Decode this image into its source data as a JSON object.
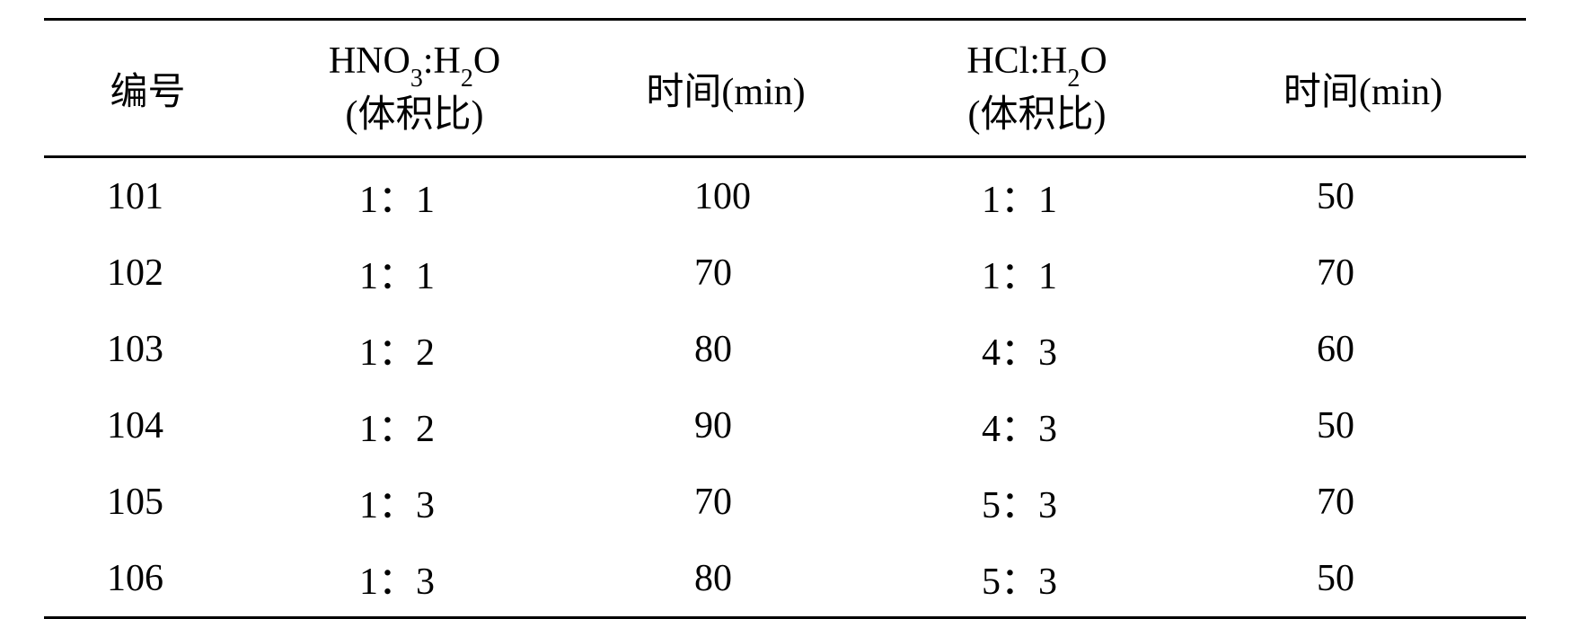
{
  "table": {
    "type": "table",
    "background_color": "#ffffff",
    "text_color": "#000000",
    "border_color": "#000000",
    "border_width": 3,
    "font_size": 42,
    "sub_font_size": 28,
    "columns": [
      {
        "key": "id",
        "label": "编号",
        "width_pct": 14,
        "align": "center"
      },
      {
        "key": "hno3_ratio",
        "label_html": "HNO3:H2O\n(体积比)",
        "formula": "HNO",
        "sub1": "3",
        "mid": ":H",
        "sub2": "2",
        "suffix": "O",
        "unit": "(体积比)",
        "width_pct": 22,
        "align": "center"
      },
      {
        "key": "time1",
        "label": "时间(min)",
        "width_pct": 20,
        "align": "center"
      },
      {
        "key": "hcl_ratio",
        "label_html": "HCl:H2O\n(体积比)",
        "formula": "HCl:H",
        "sub1": "2",
        "suffix": "O",
        "unit": "(体积比)",
        "width_pct": 22,
        "align": "center"
      },
      {
        "key": "time2",
        "label": "时间(min)",
        "width_pct": 22,
        "align": "center"
      }
    ],
    "rows": [
      {
        "id": "101",
        "hno3_ratio": "1：1",
        "time1": "100",
        "hcl_ratio": "1：1",
        "time2": "50"
      },
      {
        "id": "102",
        "hno3_ratio": "1：1",
        "time1": "70",
        "hcl_ratio": "1：1",
        "time2": "70"
      },
      {
        "id": "103",
        "hno3_ratio": "1：2",
        "time1": "80",
        "hcl_ratio": "4：3",
        "time2": "60"
      },
      {
        "id": "104",
        "hno3_ratio": "1：2",
        "time1": "90",
        "hcl_ratio": "4：3",
        "time2": "50"
      },
      {
        "id": "105",
        "hno3_ratio": "1：3",
        "time1": "70",
        "hcl_ratio": "5：3",
        "time2": "70"
      },
      {
        "id": "106",
        "hno3_ratio": "1：3",
        "time1": "80",
        "hcl_ratio": "5：3",
        "time2": "50"
      }
    ]
  }
}
